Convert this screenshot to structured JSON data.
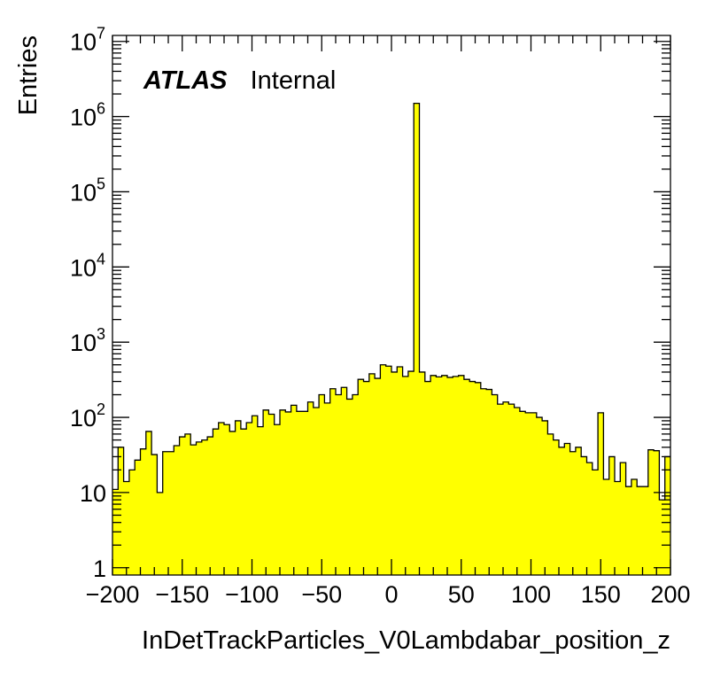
{
  "chart_data": {
    "type": "bar",
    "subtype": "histogram",
    "title": "",
    "xlabel": "InDetTrackParticles_V0Lambdabar_position_z",
    "ylabel": "Entries",
    "xlim": [
      -200,
      200
    ],
    "ylim": [
      0.8,
      12000000
    ],
    "yscale": "log",
    "bin_width": 4,
    "fill_color": "#ffff00",
    "line_color": "#000000",
    "grid": false,
    "legend": "none",
    "annotation": {
      "brand": "ATLAS",
      "label": "Internal"
    },
    "x_ticks": [
      {
        "v": -200,
        "label": "−200"
      },
      {
        "v": -150,
        "label": "−150"
      },
      {
        "v": -100,
        "label": "−100"
      },
      {
        "v": -50,
        "label": "−50"
      },
      {
        "v": 0,
        "label": "0"
      },
      {
        "v": 50,
        "label": "50"
      },
      {
        "v": 100,
        "label": "100"
      },
      {
        "v": 150,
        "label": "150"
      },
      {
        "v": 200,
        "label": "200"
      }
    ],
    "y_ticks": [
      {
        "v": 1,
        "base": "1",
        "exp": ""
      },
      {
        "v": 10,
        "base": "10",
        "exp": ""
      },
      {
        "v": 100,
        "base": "10",
        "exp": "2"
      },
      {
        "v": 1000,
        "base": "10",
        "exp": "3"
      },
      {
        "v": 10000,
        "base": "10",
        "exp": "4"
      },
      {
        "v": 100000,
        "base": "10",
        "exp": "5"
      },
      {
        "v": 1000000,
        "base": "10",
        "exp": "6"
      },
      {
        "v": 10000000,
        "base": "10",
        "exp": "7"
      }
    ],
    "values": [
      11,
      40,
      14,
      20,
      27,
      38,
      65,
      32,
      10,
      35,
      35,
      42,
      55,
      60,
      43,
      47,
      50,
      55,
      70,
      85,
      80,
      65,
      90,
      70,
      85,
      105,
      75,
      125,
      110,
      80,
      125,
      118,
      145,
      120,
      120,
      160,
      135,
      200,
      155,
      240,
      200,
      250,
      175,
      200,
      320,
      300,
      380,
      330,
      500,
      480,
      400,
      470,
      350,
      410,
      1500000,
      400,
      300,
      360,
      345,
      360,
      340,
      350,
      360,
      320,
      300,
      290,
      240,
      235,
      200,
      150,
      160,
      150,
      135,
      120,
      115,
      115,
      100,
      90,
      60,
      50,
      40,
      45,
      35,
      40,
      30,
      25,
      20,
      115,
      15,
      30,
      14,
      25,
      12,
      15,
      12,
      12,
      37,
      36,
      8,
      30
    ]
  }
}
